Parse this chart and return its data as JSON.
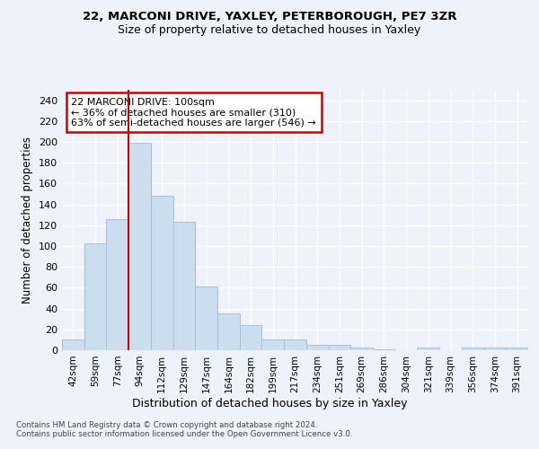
{
  "title1": "22, MARCONI DRIVE, YAXLEY, PETERBOROUGH, PE7 3ZR",
  "title2": "Size of property relative to detached houses in Yaxley",
  "xlabel": "Distribution of detached houses by size in Yaxley",
  "ylabel": "Number of detached properties",
  "categories": [
    "42sqm",
    "59sqm",
    "77sqm",
    "94sqm",
    "112sqm",
    "129sqm",
    "147sqm",
    "164sqm",
    "182sqm",
    "199sqm",
    "217sqm",
    "234sqm",
    "251sqm",
    "269sqm",
    "286sqm",
    "304sqm",
    "321sqm",
    "339sqm",
    "356sqm",
    "374sqm",
    "391sqm"
  ],
  "values": [
    10,
    103,
    126,
    199,
    148,
    123,
    61,
    35,
    24,
    10,
    10,
    5,
    5,
    3,
    1,
    0,
    3,
    0,
    3,
    3,
    3
  ],
  "bar_color": "#ccddf0",
  "bar_edge_color": "#aabbdd",
  "vline_x_index": 2.5,
  "vline_color": "#cc0000",
  "annotation_text": "22 MARCONI DRIVE: 100sqm\n← 36% of detached houses are smaller (310)\n63% of semi-detached houses are larger (546) →",
  "annotation_box_facecolor": "#ffffff",
  "annotation_box_edgecolor": "#cc0000",
  "ylim": [
    0,
    250
  ],
  "yticks": [
    0,
    20,
    40,
    60,
    80,
    100,
    120,
    140,
    160,
    180,
    200,
    220,
    240
  ],
  "bg_color": "#eef2fa",
  "grid_color": "#ffffff",
  "footer1": "Contains HM Land Registry data © Crown copyright and database right 2024.",
  "footer2": "Contains public sector information licensed under the Open Government Licence v3.0."
}
